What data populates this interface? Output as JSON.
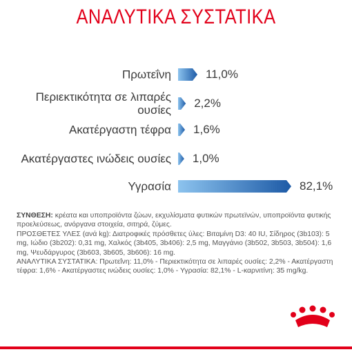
{
  "chart_data": {
    "type": "bar",
    "title": "ΑΝΑΛΥΤΙΚΑ ΣΥΣΤΑΤΙΚΑ",
    "categories": [
      "Πρωτεΐνη",
      "Περιεκτικότητα σε λιπαρές ουσίες",
      "Ακατέργαστη τέφρα",
      "Ακατέργαστες ινώδεις ουσίες",
      "Υγρασία"
    ],
    "values": [
      11.0,
      2.2,
      1.6,
      1.0,
      82.1
    ],
    "value_labels": [
      "11,0%",
      "2,2%",
      "1,6%",
      "1,0%",
      "82,1%"
    ],
    "color": "#2a6db5"
  },
  "composition": {
    "label": "ΣΥΝΘΕΣΗ:",
    "text": "κρέατα και υποπροϊόντα ζώων, εκχυλίσματα φυτικών πρωτεϊνών, υποπροϊόντα φυτικής προελεύσεως, ανόργανα στοιχεία, σιτηρά, ζύμες."
  },
  "additives": "ΠΡΟΣΘΕΤΕΣ ΥΛΕΣ (ανά kg): Διατροφικές πρόσθετες ύλες: Βιταμίνη D3: 40 IU, Σίδηρος (3b103): 5 mg, Ιώδιο (3b202): 0,31 mg, Χαλκός (3b405, 3b406): 2,5 mg, Μαγγάνιο (3b502, 3b503, 3b504): 1,6 mg, Ψευδάργυρος (3b603, 3b605, 3b606): 16 mg.",
  "analysis": "ΑΝΑΛΥΤΙΚΑ ΣΥΣΤΑΤΙΚΑ: Πρωτεΐνη: 11,0% - Περιεκτικότητα σε λιπαρές ουσίες: 2,2% - Ακατέργαστη τέφρα: 1,6% - Ακατέργαστες ινώδεις ουσίες: 1,0% - Υγρασία: 82,1% - L-καρνιτίνη: 35 mg/kg."
}
